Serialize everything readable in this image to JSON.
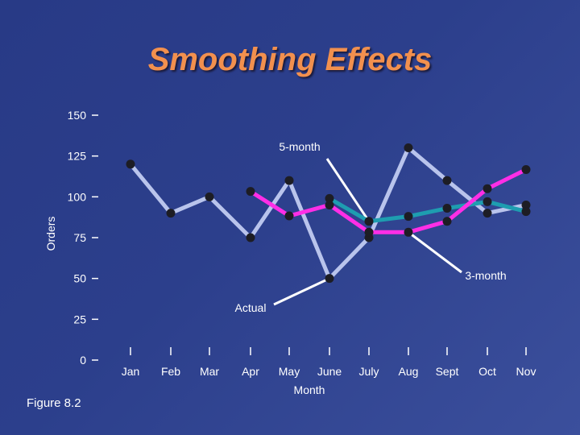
{
  "slide": {
    "title": "Smoothing Effects",
    "caption": "Figure 8.2"
  },
  "chart_data": {
    "type": "line",
    "title": "Smoothing Effects",
    "xlabel": "Month",
    "ylabel": "Orders",
    "ylim": [
      0,
      150
    ],
    "y_ticks": [
      0,
      25,
      50,
      75,
      100,
      125,
      150
    ],
    "categories": [
      "Jan",
      "Feb",
      "Mar",
      "Apr",
      "May",
      "June",
      "July",
      "Aug",
      "Sept",
      "Oct",
      "Nov"
    ],
    "series": [
      {
        "name": "Actual",
        "color": "#b9c4ec",
        "values": [
          120,
          90,
          100,
          75,
          110,
          50,
          75,
          130,
          110,
          90,
          95
        ]
      },
      {
        "name": "3-month",
        "color": "#ff2ee6",
        "values": [
          null,
          null,
          null,
          103.3,
          88.3,
          95,
          78.3,
          78.3,
          85,
          105,
          116.7
        ]
      },
      {
        "name": "5-month",
        "color": "#1e9db0",
        "values": [
          null,
          null,
          null,
          null,
          null,
          99,
          85,
          88,
          93,
          97,
          91
        ]
      }
    ],
    "annotations": [
      {
        "text": "5-month",
        "series": "5-month",
        "point_index": 6
      },
      {
        "text": "3-month",
        "series": "3-month",
        "point_index": 7
      },
      {
        "text": "Actual",
        "series": "Actual",
        "point_index": 5
      }
    ]
  }
}
